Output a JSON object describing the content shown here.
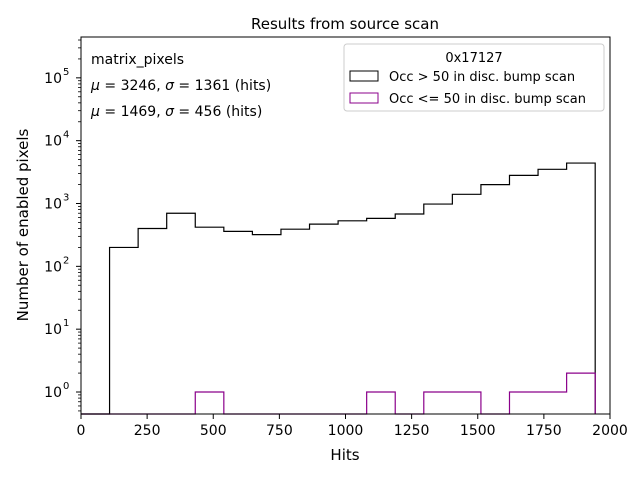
{
  "chart_data": {
    "type": "histogram",
    "title": "Results from source scan",
    "xlabel": "Hits",
    "ylabel": "Number of enabled pixels",
    "xlim": [
      0,
      2000
    ],
    "ylim_log10": [
      -0.35,
      5.65
    ],
    "yscale": "log",
    "x_ticks": [
      0,
      250,
      500,
      750,
      1000,
      1250,
      1500,
      1750,
      2000
    ],
    "x_tick_labels": [
      "0",
      "250",
      "500",
      "750",
      "1000",
      "1250",
      "1500",
      "1750",
      "2000"
    ],
    "y_ticks": [
      1,
      10,
      100,
      1000,
      10000,
      100000
    ],
    "y_tick_labels": [
      {
        "base": "10",
        "exp": "0"
      },
      {
        "base": "10",
        "exp": "1"
      },
      {
        "base": "10",
        "exp": "2"
      },
      {
        "base": "10",
        "exp": "3"
      },
      {
        "base": "10",
        "exp": "4"
      },
      {
        "base": "10",
        "exp": "5"
      }
    ],
    "bin_edges": [
      0,
      108,
      216,
      324,
      432,
      540,
      648,
      756,
      864,
      972,
      1080,
      1188,
      1296,
      1404,
      1512,
      1620,
      1728,
      1836,
      1944
    ],
    "series": [
      {
        "name": "Occ > 50 in disc. bump scan",
        "color": "#000000",
        "values": [
          0,
          200,
          400,
          700,
          420,
          360,
          320,
          390,
          470,
          530,
          580,
          680,
          980,
          1400,
          2000,
          2800,
          3500,
          4400
        ]
      },
      {
        "name": "Occ <= 50 in disc. bump scan",
        "color": "#8b008b",
        "values": [
          0,
          0,
          0,
          0,
          1,
          0,
          0,
          0,
          0,
          0,
          1,
          0,
          1,
          1,
          0,
          1,
          1,
          2
        ]
      }
    ],
    "annotations": {
      "label": "matrix_pixels",
      "stat1": {
        "mu": "3246",
        "sigma": "1361",
        "unit": "(hits)",
        "color": "#000000"
      },
      "stat2": {
        "mu": "1469",
        "sigma": "456",
        "unit": "(hits)",
        "color": "#8b008b"
      }
    },
    "legend": {
      "title": "0x17127",
      "placement": "top-right"
    }
  }
}
